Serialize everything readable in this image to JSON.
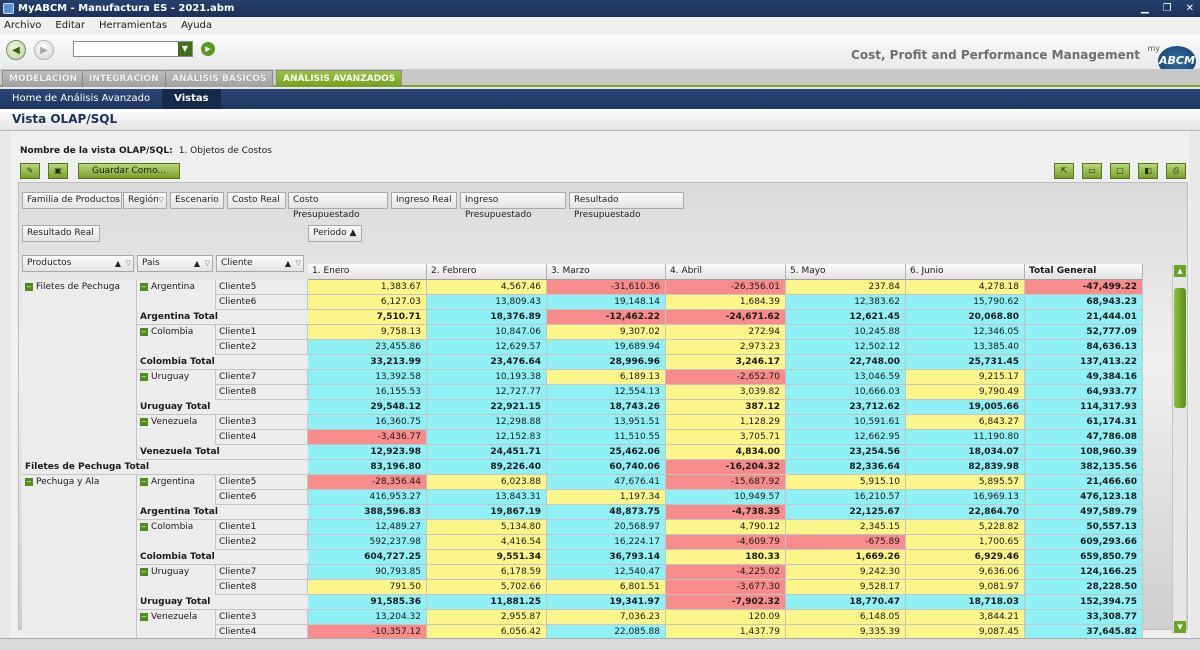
{
  "window": {
    "title": "MyABCM - Manufactura ES - 2021.abm"
  },
  "menu": [
    "Archivo",
    "Editar",
    "Herramientas",
    "Ayuda"
  ],
  "brand": {
    "tagline": "Cost, Profit and Performance Management",
    "logo_small": "my",
    "logo": "ABCM"
  },
  "tabs": [
    "MODELACIÓN",
    "INTEGRACIÓN",
    "ANÁLISIS BÁSICOS",
    "ANÁLISIS AVANZADOS"
  ],
  "active_tab": "ANÁLISIS AVANZADOS",
  "subnav": [
    "Home de Análisis Avanzado",
    "Vistas"
  ],
  "view": {
    "title": "Vista OLAP/SQL",
    "name_label": "Nombre de la vista OLAP/SQL:",
    "name_value": "1. Objetos de Costos",
    "save_as": "Guardar Como..."
  },
  "filter_fields": [
    "Familia de Productos",
    "Región",
    "Escenario",
    "Costo Real",
    "Costo Presupuestado",
    "Ingreso Real",
    "Ingreso Presupuestado",
    "Resultado Presupuestado"
  ],
  "data_field": "Resultado Real",
  "column_field": "Periodo",
  "row_fields": [
    "Productos",
    "Pais",
    "Cliente"
  ],
  "columns": [
    "1. Enero",
    "2. Febrero",
    "3. Marzo",
    "4. Abril",
    "5. Mayo",
    "6. Junio",
    "Total General"
  ],
  "rows": [
    {
      "prod": "Filetes de Pechuga",
      "pais": "Argentina",
      "cli": "Cliente5",
      "v": [
        "1,383.67",
        "4,567.46",
        "-31,610.36",
        "-26,356.01",
        "237.84",
        "4,278.18",
        "-47,499.22"
      ],
      "c": [
        "y",
        "y",
        "r",
        "r",
        "y",
        "y",
        "r"
      ]
    },
    {
      "cli": "Cliente6",
      "v": [
        "6,127.03",
        "13,809.43",
        "19,148.14",
        "1,684.39",
        "12,383.62",
        "15,790.62",
        "68,943.23"
      ],
      "c": [
        "y",
        "c",
        "c",
        "y",
        "c",
        "c",
        "c"
      ]
    },
    {
      "total": "Argentina Total",
      "v": [
        "7,510.71",
        "18,376.89",
        "-12,462.22",
        "-24,671.62",
        "12,621.45",
        "20,068.80",
        "21,444.01"
      ],
      "c": [
        "y",
        "c",
        "r",
        "r",
        "c",
        "c",
        "c"
      ]
    },
    {
      "pais": "Colombia",
      "cli": "Cliente1",
      "v": [
        "9,758.13",
        "10,847.06",
        "9,307.02",
        "272.94",
        "10,245.88",
        "12,346.05",
        "52,777.09"
      ],
      "c": [
        "y",
        "c",
        "y",
        "y",
        "c",
        "c",
        "c"
      ]
    },
    {
      "cli": "Cliente2",
      "v": [
        "23,455.86",
        "12,629.57",
        "19,689.94",
        "2,973.23",
        "12,502.12",
        "13,385.40",
        "84,636.13"
      ],
      "c": [
        "c",
        "c",
        "c",
        "y",
        "c",
        "c",
        "c"
      ]
    },
    {
      "total": "Colombia Total",
      "v": [
        "33,213.99",
        "23,476.64",
        "28,996.96",
        "3,246.17",
        "22,748.00",
        "25,731.45",
        "137,413.22"
      ],
      "c": [
        "c",
        "c",
        "c",
        "y",
        "c",
        "c",
        "c"
      ]
    },
    {
      "pais": "Uruguay",
      "cli": "Cliente7",
      "v": [
        "13,392.58",
        "10,193.38",
        "6,189.13",
        "-2,652.70",
        "13,046.59",
        "9,215.17",
        "49,384.16"
      ],
      "c": [
        "c",
        "c",
        "y",
        "r",
        "c",
        "y",
        "c"
      ]
    },
    {
      "cli": "Cliente8",
      "v": [
        "16,155.53",
        "12,727.77",
        "12,554.13",
        "3,039.82",
        "10,666.03",
        "9,790.49",
        "64,933.77"
      ],
      "c": [
        "c",
        "c",
        "c",
        "y",
        "c",
        "y",
        "c"
      ]
    },
    {
      "total": "Uruguay Total",
      "v": [
        "29,548.12",
        "22,921.15",
        "18,743.26",
        "387.12",
        "23,712.62",
        "19,005.66",
        "114,317.93"
      ],
      "c": [
        "c",
        "c",
        "c",
        "y",
        "c",
        "c",
        "c"
      ]
    },
    {
      "pais": "Venezuela",
      "cli": "Cliente3",
      "v": [
        "16,360.75",
        "12,298.88",
        "13,951.51",
        "1,128.29",
        "10,591.61",
        "6,843.27",
        "61,174.31"
      ],
      "c": [
        "c",
        "c",
        "c",
        "y",
        "c",
        "y",
        "c"
      ]
    },
    {
      "cli": "Cliente4",
      "v": [
        "-3,436.77",
        "12,152.83",
        "11,510.55",
        "3,705.71",
        "12,662.95",
        "11,190.80",
        "47,786.08"
      ],
      "c": [
        "r",
        "c",
        "c",
        "y",
        "c",
        "c",
        "c"
      ]
    },
    {
      "total": "Venezuela Total",
      "v": [
        "12,923.98",
        "24,451.71",
        "25,462.06",
        "4,834.00",
        "23,254.56",
        "18,034.07",
        "108,960.39"
      ],
      "c": [
        "c",
        "c",
        "c",
        "y",
        "c",
        "c",
        "c"
      ]
    },
    {
      "grand": "Filetes de Pechuga Total",
      "v": [
        "83,196.80",
        "89,226.40",
        "60,740.06",
        "-16,204.32",
        "82,336.64",
        "82,839.98",
        "382,135.56"
      ],
      "c": [
        "c",
        "c",
        "c",
        "r",
        "c",
        "c",
        "c"
      ]
    },
    {
      "prod": "Pechuga y Ala",
      "pais": "Argentina",
      "cli": "Cliente5",
      "v": [
        "-28,356.44",
        "6,023.88",
        "47,676.41",
        "-15,687.92",
        "5,915.10",
        "5,895.57",
        "21,466.60"
      ],
      "c": [
        "r",
        "y",
        "c",
        "r",
        "y",
        "y",
        "c"
      ]
    },
    {
      "cli": "Cliente6",
      "v": [
        "416,953.27",
        "13,843.31",
        "1,197.34",
        "10,949.57",
        "16,210.57",
        "16,969.13",
        "476,123.18"
      ],
      "c": [
        "c",
        "c",
        "y",
        "c",
        "c",
        "c",
        "c"
      ]
    },
    {
      "total": "Argentina Total",
      "v": [
        "388,596.83",
        "19,867.19",
        "48,873.75",
        "-4,738.35",
        "22,125.67",
        "22,864.70",
        "497,589.79"
      ],
      "c": [
        "c",
        "c",
        "c",
        "r",
        "c",
        "c",
        "c"
      ]
    },
    {
      "pais": "Colombia",
      "cli": "Cliente1",
      "v": [
        "12,489.27",
        "5,134.80",
        "20,568.97",
        "4,790.12",
        "2,345.15",
        "5,228.82",
        "50,557.13"
      ],
      "c": [
        "c",
        "y",
        "c",
        "y",
        "y",
        "y",
        "c"
      ]
    },
    {
      "cli": "Cliente2",
      "v": [
        "592,237.98",
        "4,416.54",
        "16,224.17",
        "-4,609.79",
        "-675.89",
        "1,700.65",
        "609,293.66"
      ],
      "c": [
        "c",
        "y",
        "c",
        "r",
        "r",
        "y",
        "c"
      ]
    },
    {
      "total": "Colombia Total",
      "v": [
        "604,727.25",
        "9,551.34",
        "36,793.14",
        "180.33",
        "1,669.26",
        "6,929.46",
        "659,850.79"
      ],
      "c": [
        "c",
        "y",
        "c",
        "y",
        "y",
        "y",
        "c"
      ]
    },
    {
      "pais": "Uruguay",
      "cli": "Cliente7",
      "v": [
        "90,793.85",
        "6,178.59",
        "12,540.47",
        "-4,225.02",
        "9,242.30",
        "9,636.06",
        "124,166.25"
      ],
      "c": [
        "c",
        "y",
        "c",
        "r",
        "y",
        "y",
        "c"
      ]
    },
    {
      "cli": "Cliente8",
      "v": [
        "791.50",
        "5,702.66",
        "6,801.51",
        "-3,677.30",
        "9,528.17",
        "9,081.97",
        "28,228.50"
      ],
      "c": [
        "y",
        "y",
        "y",
        "r",
        "y",
        "y",
        "c"
      ]
    },
    {
      "total": "Uruguay Total",
      "v": [
        "91,585.36",
        "11,881.25",
        "19,341.97",
        "-7,902.32",
        "18,770.47",
        "18,718.03",
        "152,394.75"
      ],
      "c": [
        "c",
        "c",
        "c",
        "r",
        "c",
        "c",
        "c"
      ]
    },
    {
      "pais": "Venezuela",
      "cli": "Cliente3",
      "v": [
        "13,204.32",
        "2,955.87",
        "7,036.23",
        "120.09",
        "6,148.05",
        "3,844.21",
        "33,308.77"
      ],
      "c": [
        "c",
        "y",
        "y",
        "y",
        "y",
        "y",
        "c"
      ]
    },
    {
      "cli": "Cliente4",
      "v": [
        "-10,357.12",
        "6,056.42",
        "22,085.88",
        "1,437.79",
        "9,335.39",
        "9,087.45",
        "37,645.82"
      ],
      "c": [
        "r",
        "y",
        "c",
        "y",
        "y",
        "y",
        "c"
      ]
    }
  ]
}
